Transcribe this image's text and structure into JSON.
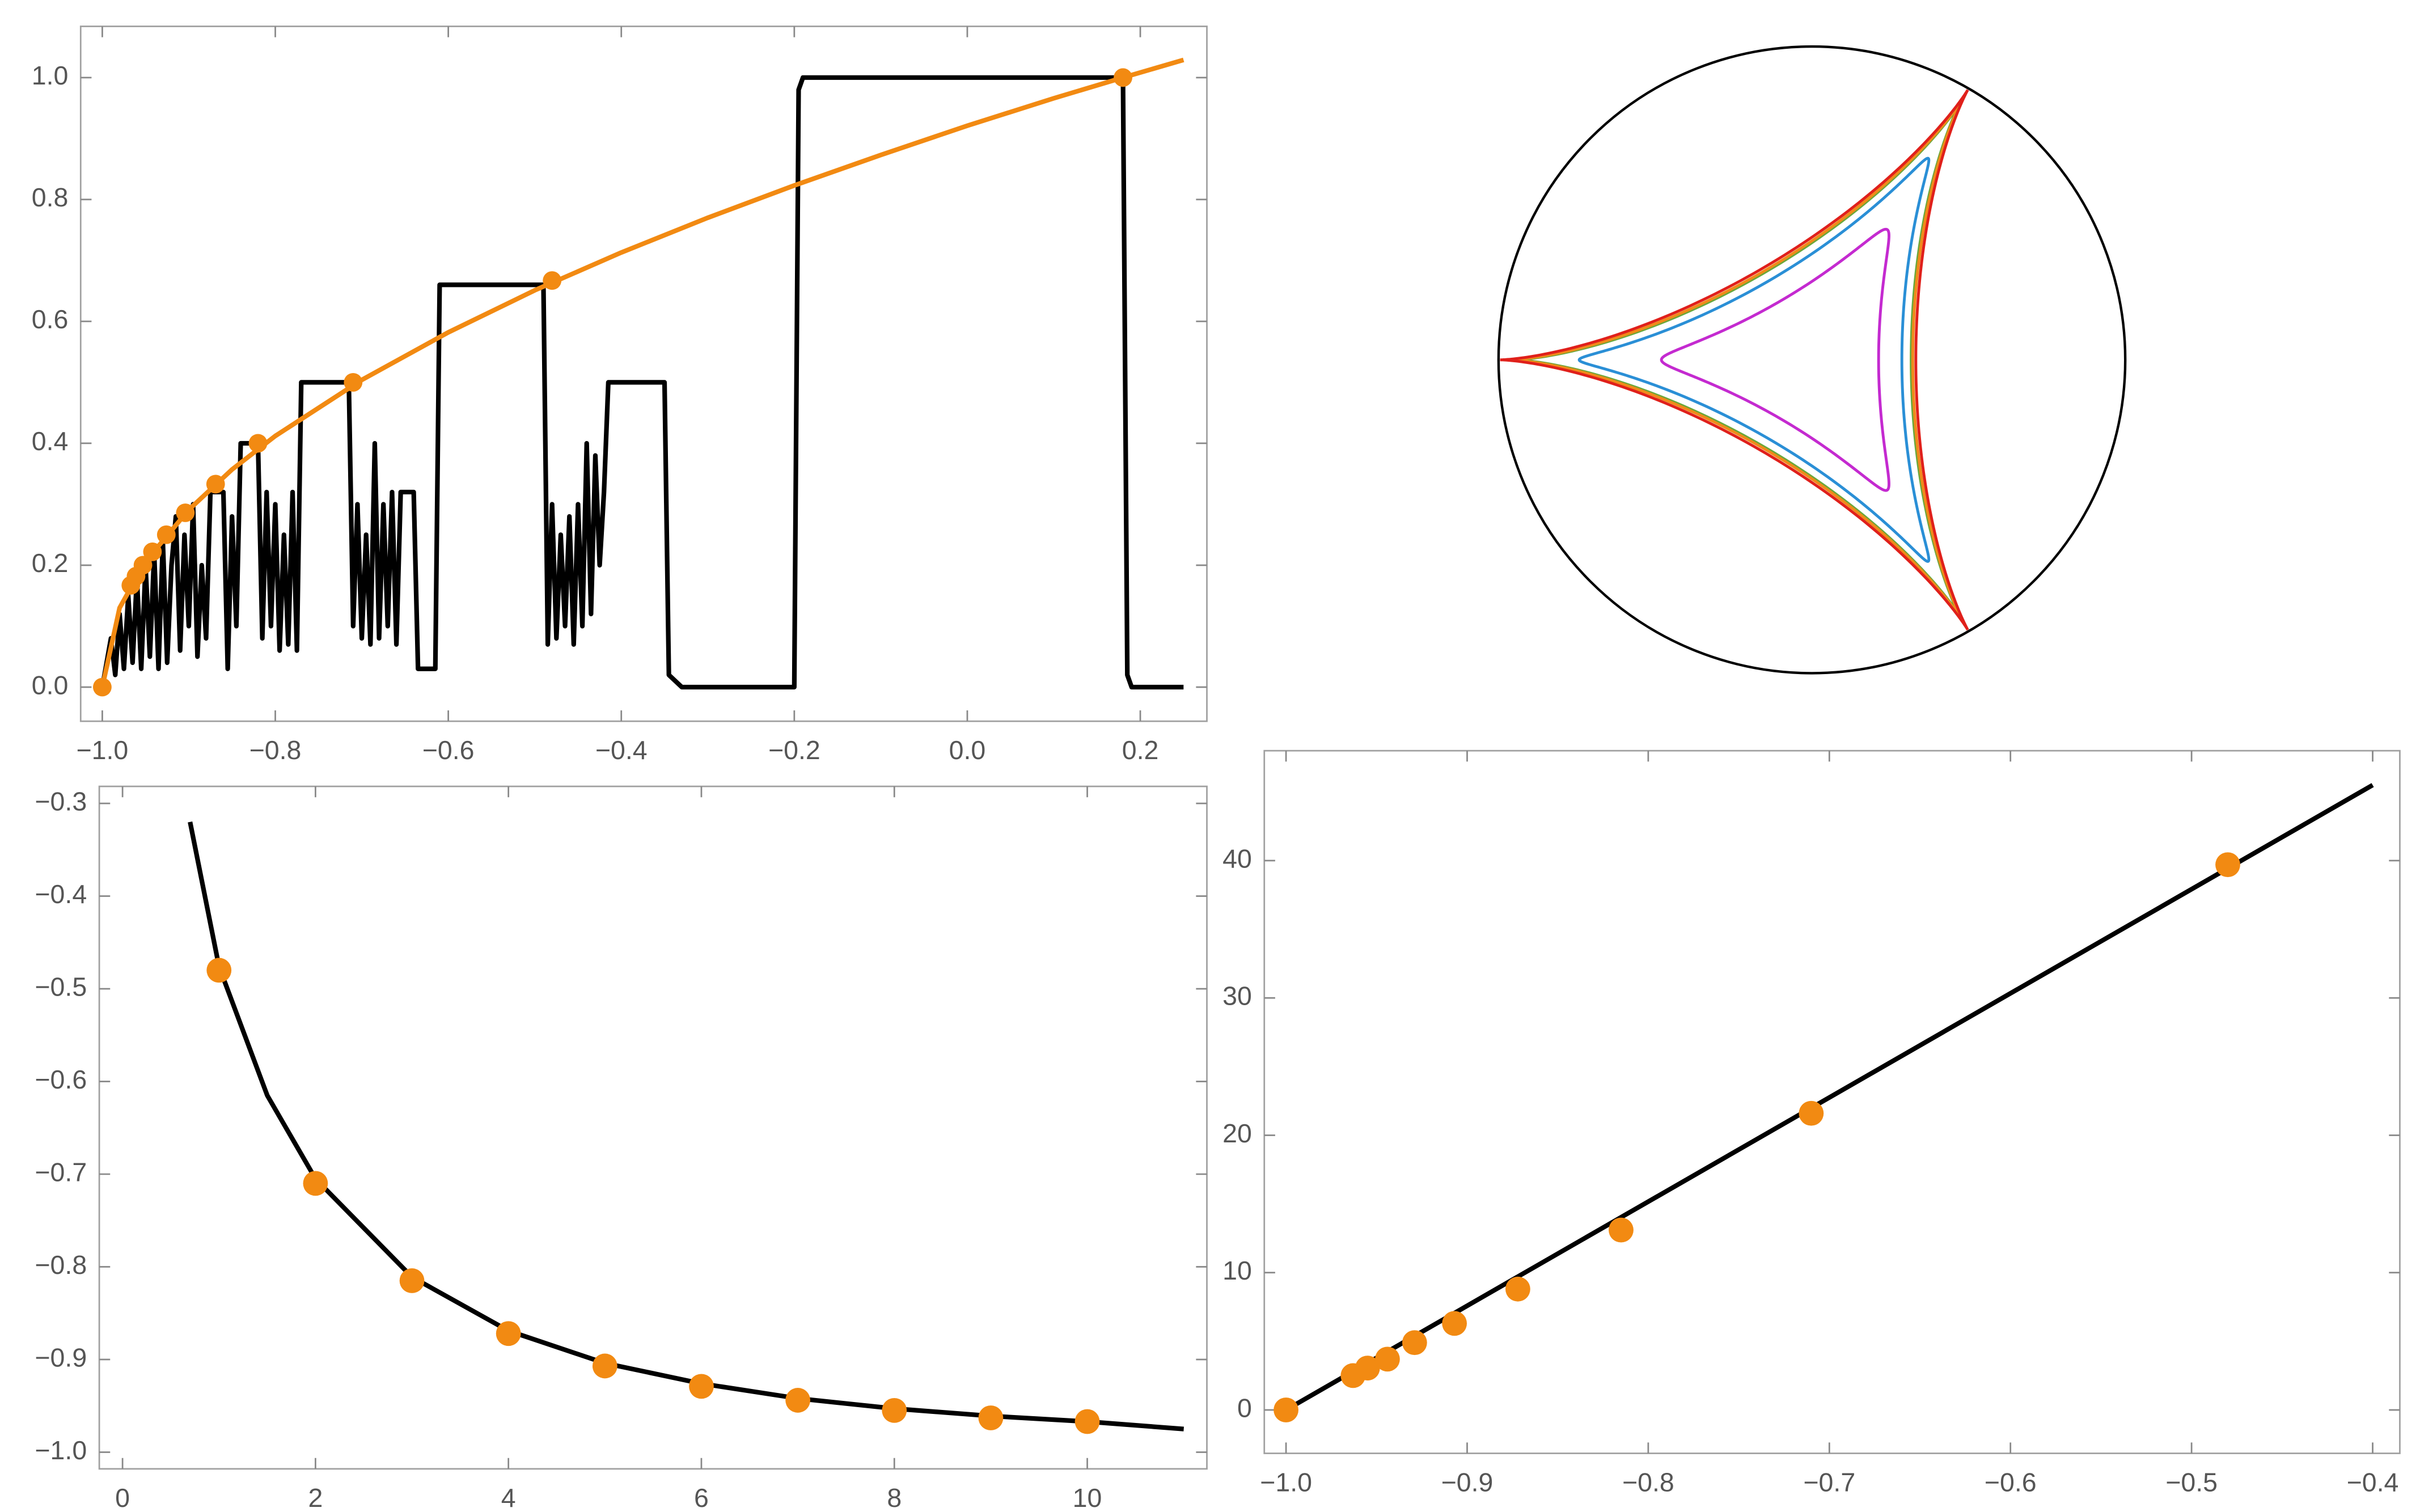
{
  "chart_data": [
    {
      "type": "line",
      "xlim": [
        -1.025,
        0.277
      ],
      "ylim": [
        -0.056,
        1.084
      ],
      "xticks": [
        {
          "value": -1.0,
          "label": "−1.0"
        },
        {
          "value": -0.8,
          "label": "−0.8"
        },
        {
          "value": -0.6,
          "label": "−0.6"
        },
        {
          "value": -0.4,
          "label": "−0.4"
        },
        {
          "value": -0.2,
          "label": "−0.2"
        },
        {
          "value": 0.0,
          "label": "0.0"
        },
        0.2
      ],
      "yticks": [
        {
          "value": 0.0,
          "label": "0.0"
        },
        0.2,
        0.4,
        0.6,
        0.8,
        {
          "value": 1.0,
          "label": "1.0"
        }
      ],
      "series": [
        {
          "type": "line",
          "color": "#000000",
          "x": [
            -1.0,
            -0.99,
            -0.985,
            -0.98,
            -0.975,
            -0.97,
            -0.965,
            -0.96,
            -0.955,
            -0.95,
            -0.945,
            -0.94,
            -0.935,
            -0.93,
            -0.925,
            -0.92,
            -0.915,
            -0.91,
            -0.905,
            -0.9,
            -0.895,
            -0.89,
            -0.885,
            -0.88,
            -0.875,
            -0.86,
            -0.855,
            -0.85,
            -0.845,
            -0.84,
            -0.82,
            -0.815,
            -0.81,
            -0.805,
            -0.8,
            -0.795,
            -0.79,
            -0.785,
            -0.78,
            -0.775,
            -0.77,
            -0.715,
            -0.71,
            -0.705,
            -0.7,
            -0.695,
            -0.69,
            -0.685,
            -0.68,
            -0.675,
            -0.67,
            -0.665,
            -0.66,
            -0.655,
            -0.64,
            -0.635,
            -0.615,
            -0.61,
            -0.49,
            -0.485,
            -0.48,
            -0.475,
            -0.47,
            -0.465,
            -0.46,
            -0.455,
            -0.45,
            -0.445,
            -0.44,
            -0.435,
            -0.43,
            -0.425,
            -0.42,
            -0.415,
            -0.35,
            -0.345,
            -0.33,
            -0.2,
            -0.195,
            -0.19,
            0.18,
            0.185,
            0.19,
            0.25
          ],
          "values": [
            0,
            0.08,
            0.02,
            0.12,
            0.03,
            0.15,
            0.04,
            0.18,
            0.03,
            0.2,
            0.05,
            0.22,
            0.03,
            0.24,
            0.04,
            0.2,
            0.28,
            0.06,
            0.25,
            0.1,
            0.3,
            0.05,
            0.2,
            0.08,
            0.32,
            0.32,
            0.03,
            0.28,
            0.1,
            0.4,
            0.4,
            0.08,
            0.32,
            0.1,
            0.3,
            0.06,
            0.25,
            0.07,
            0.32,
            0.06,
            0.5,
            0.5,
            0.1,
            0.3,
            0.08,
            0.25,
            0.07,
            0.4,
            0.08,
            0.3,
            0.1,
            0.32,
            0.07,
            0.32,
            0.32,
            0.03,
            0.03,
            0.66,
            0.66,
            0.07,
            0.3,
            0.08,
            0.25,
            0.1,
            0.28,
            0.07,
            0.3,
            0.1,
            0.4,
            0.12,
            0.38,
            0.2,
            0.32,
            0.5,
            0.5,
            0.02,
            0,
            0,
            0.98,
            1.0,
            1.0,
            0.02,
            0,
            0
          ]
        },
        {
          "type": "line",
          "color": "#f28a12",
          "x": [
            -1.0,
            -0.98,
            -0.95,
            -0.9,
            -0.85,
            -0.8,
            -0.7,
            -0.6,
            -0.5,
            -0.4,
            -0.3,
            -0.2,
            -0.1,
            0,
            0.1,
            0.18,
            0.25
          ],
          "values": [
            0,
            0.13,
            0.206,
            0.291,
            0.357,
            0.412,
            0.504,
            0.582,
            0.651,
            0.713,
            0.77,
            0.823,
            0.873,
            0.921,
            0.966,
            1.0,
            1.029
          ]
        },
        {
          "type": "scatter",
          "color": "#f28a12",
          "size": 6,
          "x": [
            -1.0,
            -0.967,
            -0.961,
            -0.953,
            -0.942,
            -0.926,
            -0.904,
            -0.869,
            -0.82,
            -0.71,
            -0.48,
            0.18
          ],
          "values": [
            0,
            0.167,
            0.182,
            0.2,
            0.222,
            0.25,
            0.286,
            0.333,
            0.4,
            0.5,
            0.667,
            1.0
          ]
        }
      ]
    },
    {
      "type": "line",
      "xlim": [
        -0.241,
        11.24
      ],
      "ylim": [
        -1.018,
        -0.2816
      ],
      "xticks": [
        0,
        2,
        4,
        6,
        8,
        10
      ],
      "yticks": [
        {
          "value": -0.3,
          "label": "−0.3"
        },
        {
          "value": -0.4,
          "label": "−0.4"
        },
        {
          "value": -0.5,
          "label": "−0.5"
        },
        {
          "value": -0.6,
          "label": "−0.6"
        },
        {
          "value": -0.7,
          "label": "−0.7"
        },
        {
          "value": -0.8,
          "label": "−0.8"
        },
        {
          "value": -0.9,
          "label": "−0.9"
        },
        {
          "value": -1.0,
          "label": "−1.0"
        }
      ],
      "series": [
        {
          "type": "line",
          "color": "#000000",
          "x": [
            0.7,
            1,
            1.5,
            2,
            3,
            4,
            5,
            6,
            7,
            8,
            9,
            10,
            11
          ],
          "values": [
            -0.32,
            -0.476,
            -0.615,
            -0.705,
            -0.811,
            -0.869,
            -0.904,
            -0.926,
            -0.942,
            -0.953,
            -0.961,
            -0.967,
            -0.975
          ]
        },
        {
          "type": "scatter",
          "color": "#f28a12",
          "size": 8,
          "x": [
            1,
            2,
            3,
            4,
            5,
            6,
            7,
            8,
            9,
            10
          ],
          "values": [
            -0.48,
            -0.71,
            -0.815,
            -0.872,
            -0.907,
            -0.929,
            -0.944,
            -0.955,
            -0.963,
            -0.967
          ]
        }
      ]
    },
    {
      "type": "line",
      "xlim": [
        -1.012,
        -0.385
      ],
      "ylim": [
        -3.16,
        48.0
      ],
      "xticks": [
        {
          "value": -1.0,
          "label": "−1.0"
        },
        {
          "value": -0.9,
          "label": "−0.9"
        },
        {
          "value": -0.8,
          "label": "−0.8"
        },
        {
          "value": -0.7,
          "label": "−0.7"
        },
        {
          "value": -0.6,
          "label": "−0.6"
        },
        {
          "value": -0.5,
          "label": "−0.5"
        },
        {
          "value": -0.4,
          "label": "−0.4"
        }
      ],
      "yticks": [
        0,
        10,
        20,
        30,
        40
      ],
      "series": [
        {
          "type": "line",
          "color": "#000000",
          "x": [
            -1.0,
            -0.4
          ],
          "values": [
            0,
            45.5
          ]
        },
        {
          "type": "scatter",
          "color": "#f28a12",
          "size": 8,
          "x": [
            -1.0,
            -0.963,
            -0.955,
            -0.944,
            -0.929,
            -0.907,
            -0.872,
            -0.815,
            -0.71,
            -0.48
          ],
          "values": [
            0,
            2.5,
            3.05,
            3.7,
            4.9,
            6.3,
            8.8,
            13.1,
            21.6,
            39.7
          ]
        }
      ]
    }
  ]
}
